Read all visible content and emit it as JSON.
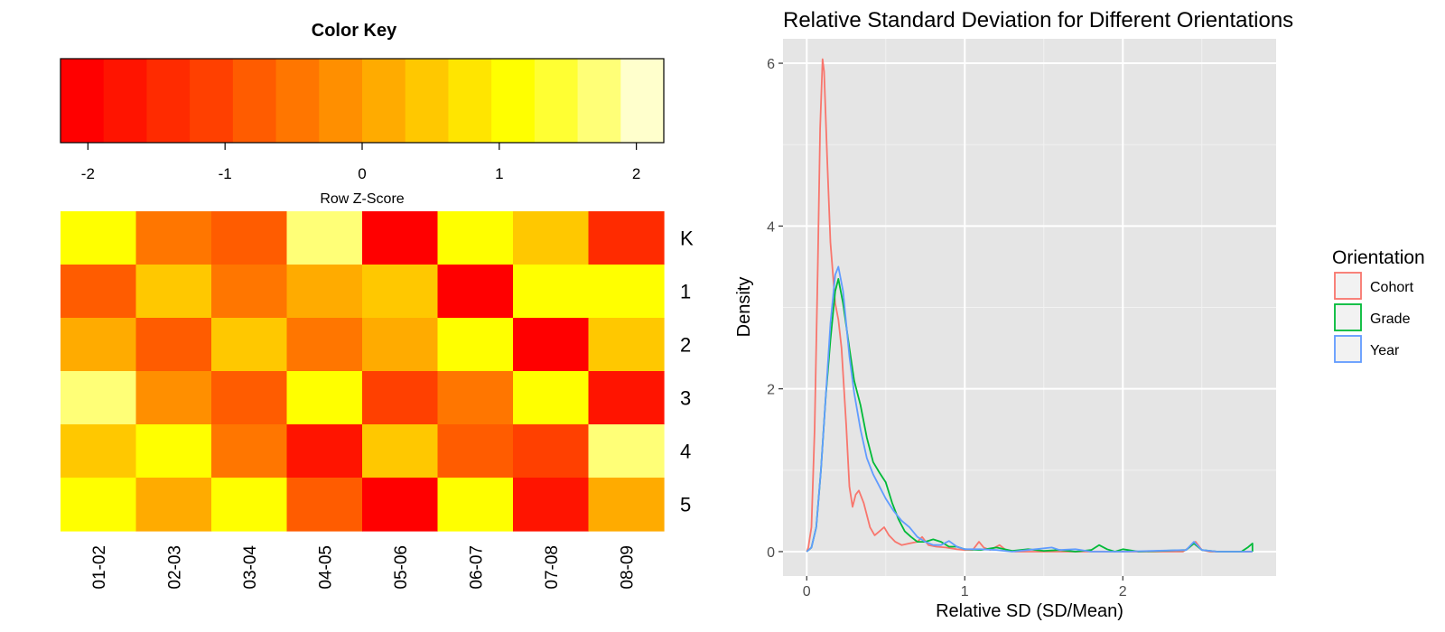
{
  "chart_data": [
    {
      "type": "heatmap",
      "color_key": {
        "title": "Color Key",
        "xlabel": "Row Z-Score",
        "range": [
          -2.2,
          2.2
        ],
        "ticks": [
          "-2",
          "-1",
          "0",
          "1",
          "2"
        ],
        "tick_values": [
          -2,
          -1,
          0,
          1,
          2
        ],
        "colors": [
          "#ff0000",
          "#ff1400",
          "#ff2b00",
          "#ff4000",
          "#ff5c00",
          "#ff7600",
          "#ff8f00",
          "#ffab00",
          "#ffc800",
          "#ffe500",
          "#ffff00",
          "#ffff33",
          "#ffff77",
          "#ffffcc"
        ]
      },
      "columns": [
        "01-02",
        "02-03",
        "03-04",
        "04-05",
        "05-06",
        "06-07",
        "07-08",
        "08-09"
      ],
      "rows": [
        "K",
        "1",
        "2",
        "3",
        "4",
        "5"
      ],
      "values": [
        [
          1.0,
          -0.5,
          -0.8,
          1.8,
          -2.1,
          1.0,
          0.5,
          -1.4
        ],
        [
          -0.8,
          0.5,
          -0.5,
          0.1,
          0.5,
          -2.1,
          1.0,
          1.0
        ],
        [
          0.1,
          -0.8,
          0.5,
          -0.5,
          0.1,
          1.0,
          -2.1,
          0.5
        ],
        [
          1.8,
          -0.3,
          -0.8,
          1.0,
          -1.1,
          -0.5,
          1.0,
          -1.7
        ],
        [
          0.5,
          1.0,
          -0.5,
          -1.7,
          0.5,
          -0.8,
          -1.2,
          1.8
        ],
        [
          1.0,
          0.1,
          1.0,
          -0.8,
          -1.9,
          1.0,
          -1.6,
          0.1
        ]
      ]
    },
    {
      "type": "line",
      "title": "Relative Standard Deviation for Different Orientations",
      "xlabel": "Relative SD (SD/Mean)",
      "ylabel": "Density",
      "xlim": [
        -0.15,
        2.97
      ],
      "ylim": [
        -0.3,
        6.3
      ],
      "x_ticks": [
        0,
        1,
        2
      ],
      "y_ticks": [
        0,
        2,
        4,
        6
      ],
      "x_minor": [
        0.5,
        1.5,
        2.5
      ],
      "y_minor": [
        1,
        3,
        5
      ],
      "grid": true,
      "legend": {
        "title": "Orientation",
        "placement": "right"
      },
      "series": [
        {
          "name": "Cohort",
          "color": "#f8766d",
          "points": [
            [
              0.0,
              0.0
            ],
            [
              0.01,
              0.05
            ],
            [
              0.03,
              0.3
            ],
            [
              0.05,
              1.5
            ],
            [
              0.07,
              3.5
            ],
            [
              0.085,
              5.2
            ],
            [
              0.1,
              6.05
            ],
            [
              0.11,
              5.9
            ],
            [
              0.13,
              4.8
            ],
            [
              0.15,
              3.8
            ],
            [
              0.18,
              3.05
            ],
            [
              0.2,
              2.85
            ],
            [
              0.22,
              2.5
            ],
            [
              0.25,
              1.55
            ],
            [
              0.27,
              0.8
            ],
            [
              0.29,
              0.55
            ],
            [
              0.31,
              0.7
            ],
            [
              0.33,
              0.75
            ],
            [
              0.36,
              0.6
            ],
            [
              0.4,
              0.3
            ],
            [
              0.43,
              0.2
            ],
            [
              0.46,
              0.25
            ],
            [
              0.49,
              0.3
            ],
            [
              0.52,
              0.2
            ],
            [
              0.56,
              0.12
            ],
            [
              0.6,
              0.08
            ],
            [
              0.65,
              0.1
            ],
            [
              0.7,
              0.12
            ],
            [
              0.73,
              0.18
            ],
            [
              0.77,
              0.08
            ],
            [
              0.82,
              0.06
            ],
            [
              0.88,
              0.05
            ],
            [
              0.95,
              0.03
            ],
            [
              1.0,
              0.02
            ],
            [
              1.05,
              0.02
            ],
            [
              1.09,
              0.12
            ],
            [
              1.12,
              0.05
            ],
            [
              1.16,
              0.02
            ],
            [
              1.22,
              0.08
            ],
            [
              1.26,
              0.02
            ],
            [
              1.32,
              0.0
            ],
            [
              1.5,
              0.0
            ],
            [
              2.0,
              0.0
            ],
            [
              2.38,
              0.0
            ],
            [
              2.42,
              0.05
            ],
            [
              2.46,
              0.12
            ],
            [
              2.5,
              0.02
            ],
            [
              2.55,
              0.0
            ],
            [
              2.82,
              0.0
            ]
          ]
        },
        {
          "name": "Grade",
          "color": "#00ba38",
          "points": [
            [
              0.0,
              0.0
            ],
            [
              0.03,
              0.05
            ],
            [
              0.06,
              0.3
            ],
            [
              0.09,
              1.0
            ],
            [
              0.12,
              1.9
            ],
            [
              0.15,
              2.6
            ],
            [
              0.18,
              3.2
            ],
            [
              0.2,
              3.35
            ],
            [
              0.23,
              3.05
            ],
            [
              0.27,
              2.5
            ],
            [
              0.3,
              2.1
            ],
            [
              0.34,
              1.8
            ],
            [
              0.38,
              1.4
            ],
            [
              0.42,
              1.1
            ],
            [
              0.46,
              0.97
            ],
            [
              0.5,
              0.85
            ],
            [
              0.54,
              0.6
            ],
            [
              0.58,
              0.4
            ],
            [
              0.62,
              0.25
            ],
            [
              0.66,
              0.18
            ],
            [
              0.7,
              0.12
            ],
            [
              0.75,
              0.12
            ],
            [
              0.8,
              0.15
            ],
            [
              0.85,
              0.12
            ],
            [
              0.9,
              0.06
            ],
            [
              0.95,
              0.06
            ],
            [
              1.0,
              0.03
            ],
            [
              1.1,
              0.02
            ],
            [
              1.2,
              0.05
            ],
            [
              1.3,
              0.01
            ],
            [
              1.4,
              0.03
            ],
            [
              1.5,
              0.01
            ],
            [
              1.6,
              0.02
            ],
            [
              1.7,
              0.0
            ],
            [
              1.8,
              0.02
            ],
            [
              1.85,
              0.08
            ],
            [
              1.9,
              0.03
            ],
            [
              1.95,
              0.0
            ],
            [
              2.0,
              0.03
            ],
            [
              2.1,
              0.0
            ],
            [
              2.4,
              0.02
            ],
            [
              2.45,
              0.1
            ],
            [
              2.5,
              0.02
            ],
            [
              2.6,
              0.0
            ],
            [
              2.75,
              0.0
            ],
            [
              2.79,
              0.05
            ],
            [
              2.82,
              0.1
            ],
            [
              2.82,
              0.0
            ]
          ]
        },
        {
          "name": "Year",
          "color": "#619cff",
          "points": [
            [
              0.0,
              0.0
            ],
            [
              0.03,
              0.05
            ],
            [
              0.06,
              0.3
            ],
            [
              0.09,
              1.0
            ],
            [
              0.12,
              1.9
            ],
            [
              0.15,
              2.8
            ],
            [
              0.18,
              3.4
            ],
            [
              0.2,
              3.5
            ],
            [
              0.23,
              3.2
            ],
            [
              0.27,
              2.4
            ],
            [
              0.3,
              1.95
            ],
            [
              0.34,
              1.5
            ],
            [
              0.38,
              1.15
            ],
            [
              0.42,
              0.95
            ],
            [
              0.46,
              0.8
            ],
            [
              0.5,
              0.65
            ],
            [
              0.55,
              0.5
            ],
            [
              0.6,
              0.38
            ],
            [
              0.65,
              0.3
            ],
            [
              0.7,
              0.18
            ],
            [
              0.75,
              0.12
            ],
            [
              0.8,
              0.08
            ],
            [
              0.85,
              0.08
            ],
            [
              0.9,
              0.13
            ],
            [
              0.95,
              0.06
            ],
            [
              1.0,
              0.03
            ],
            [
              1.1,
              0.03
            ],
            [
              1.2,
              0.02
            ],
            [
              1.3,
              0.0
            ],
            [
              1.4,
              0.02
            ],
            [
              1.55,
              0.05
            ],
            [
              1.6,
              0.02
            ],
            [
              1.7,
              0.03
            ],
            [
              1.8,
              0.0
            ],
            [
              2.0,
              0.0
            ],
            [
              2.4,
              0.02
            ],
            [
              2.45,
              0.12
            ],
            [
              2.5,
              0.02
            ],
            [
              2.6,
              0.0
            ],
            [
              2.82,
              0.0
            ]
          ]
        }
      ]
    }
  ]
}
